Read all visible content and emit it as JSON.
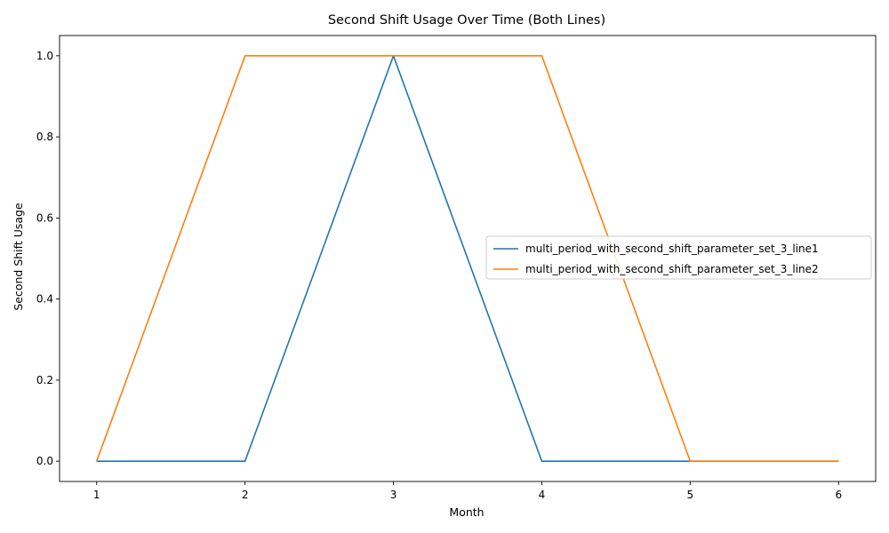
{
  "chart_data": {
    "type": "line",
    "title": "Second Shift Usage Over Time (Both Lines)",
    "xlabel": "Month",
    "ylabel": "Second Shift Usage",
    "x": [
      1,
      2,
      3,
      4,
      5,
      6
    ],
    "xlim": [
      0.75,
      6.25
    ],
    "ylim": [
      -0.05,
      1.05
    ],
    "xticks": [
      "1",
      "2",
      "3",
      "4",
      "5",
      "6"
    ],
    "yticks": [
      "0.0",
      "0.2",
      "0.4",
      "0.6",
      "0.8",
      "1.0"
    ],
    "grid": false,
    "legend_position": "center-right",
    "series": [
      {
        "name": "multi_period_with_second_shift_parameter_set_3_line1",
        "color": "#1f77b4",
        "values": [
          0,
          0,
          1,
          0,
          0,
          0
        ]
      },
      {
        "name": "multi_period_with_second_shift_parameter_set_3_line2",
        "color": "#ff7f0e",
        "values": [
          0,
          1,
          1,
          1,
          0,
          0
        ]
      }
    ]
  }
}
